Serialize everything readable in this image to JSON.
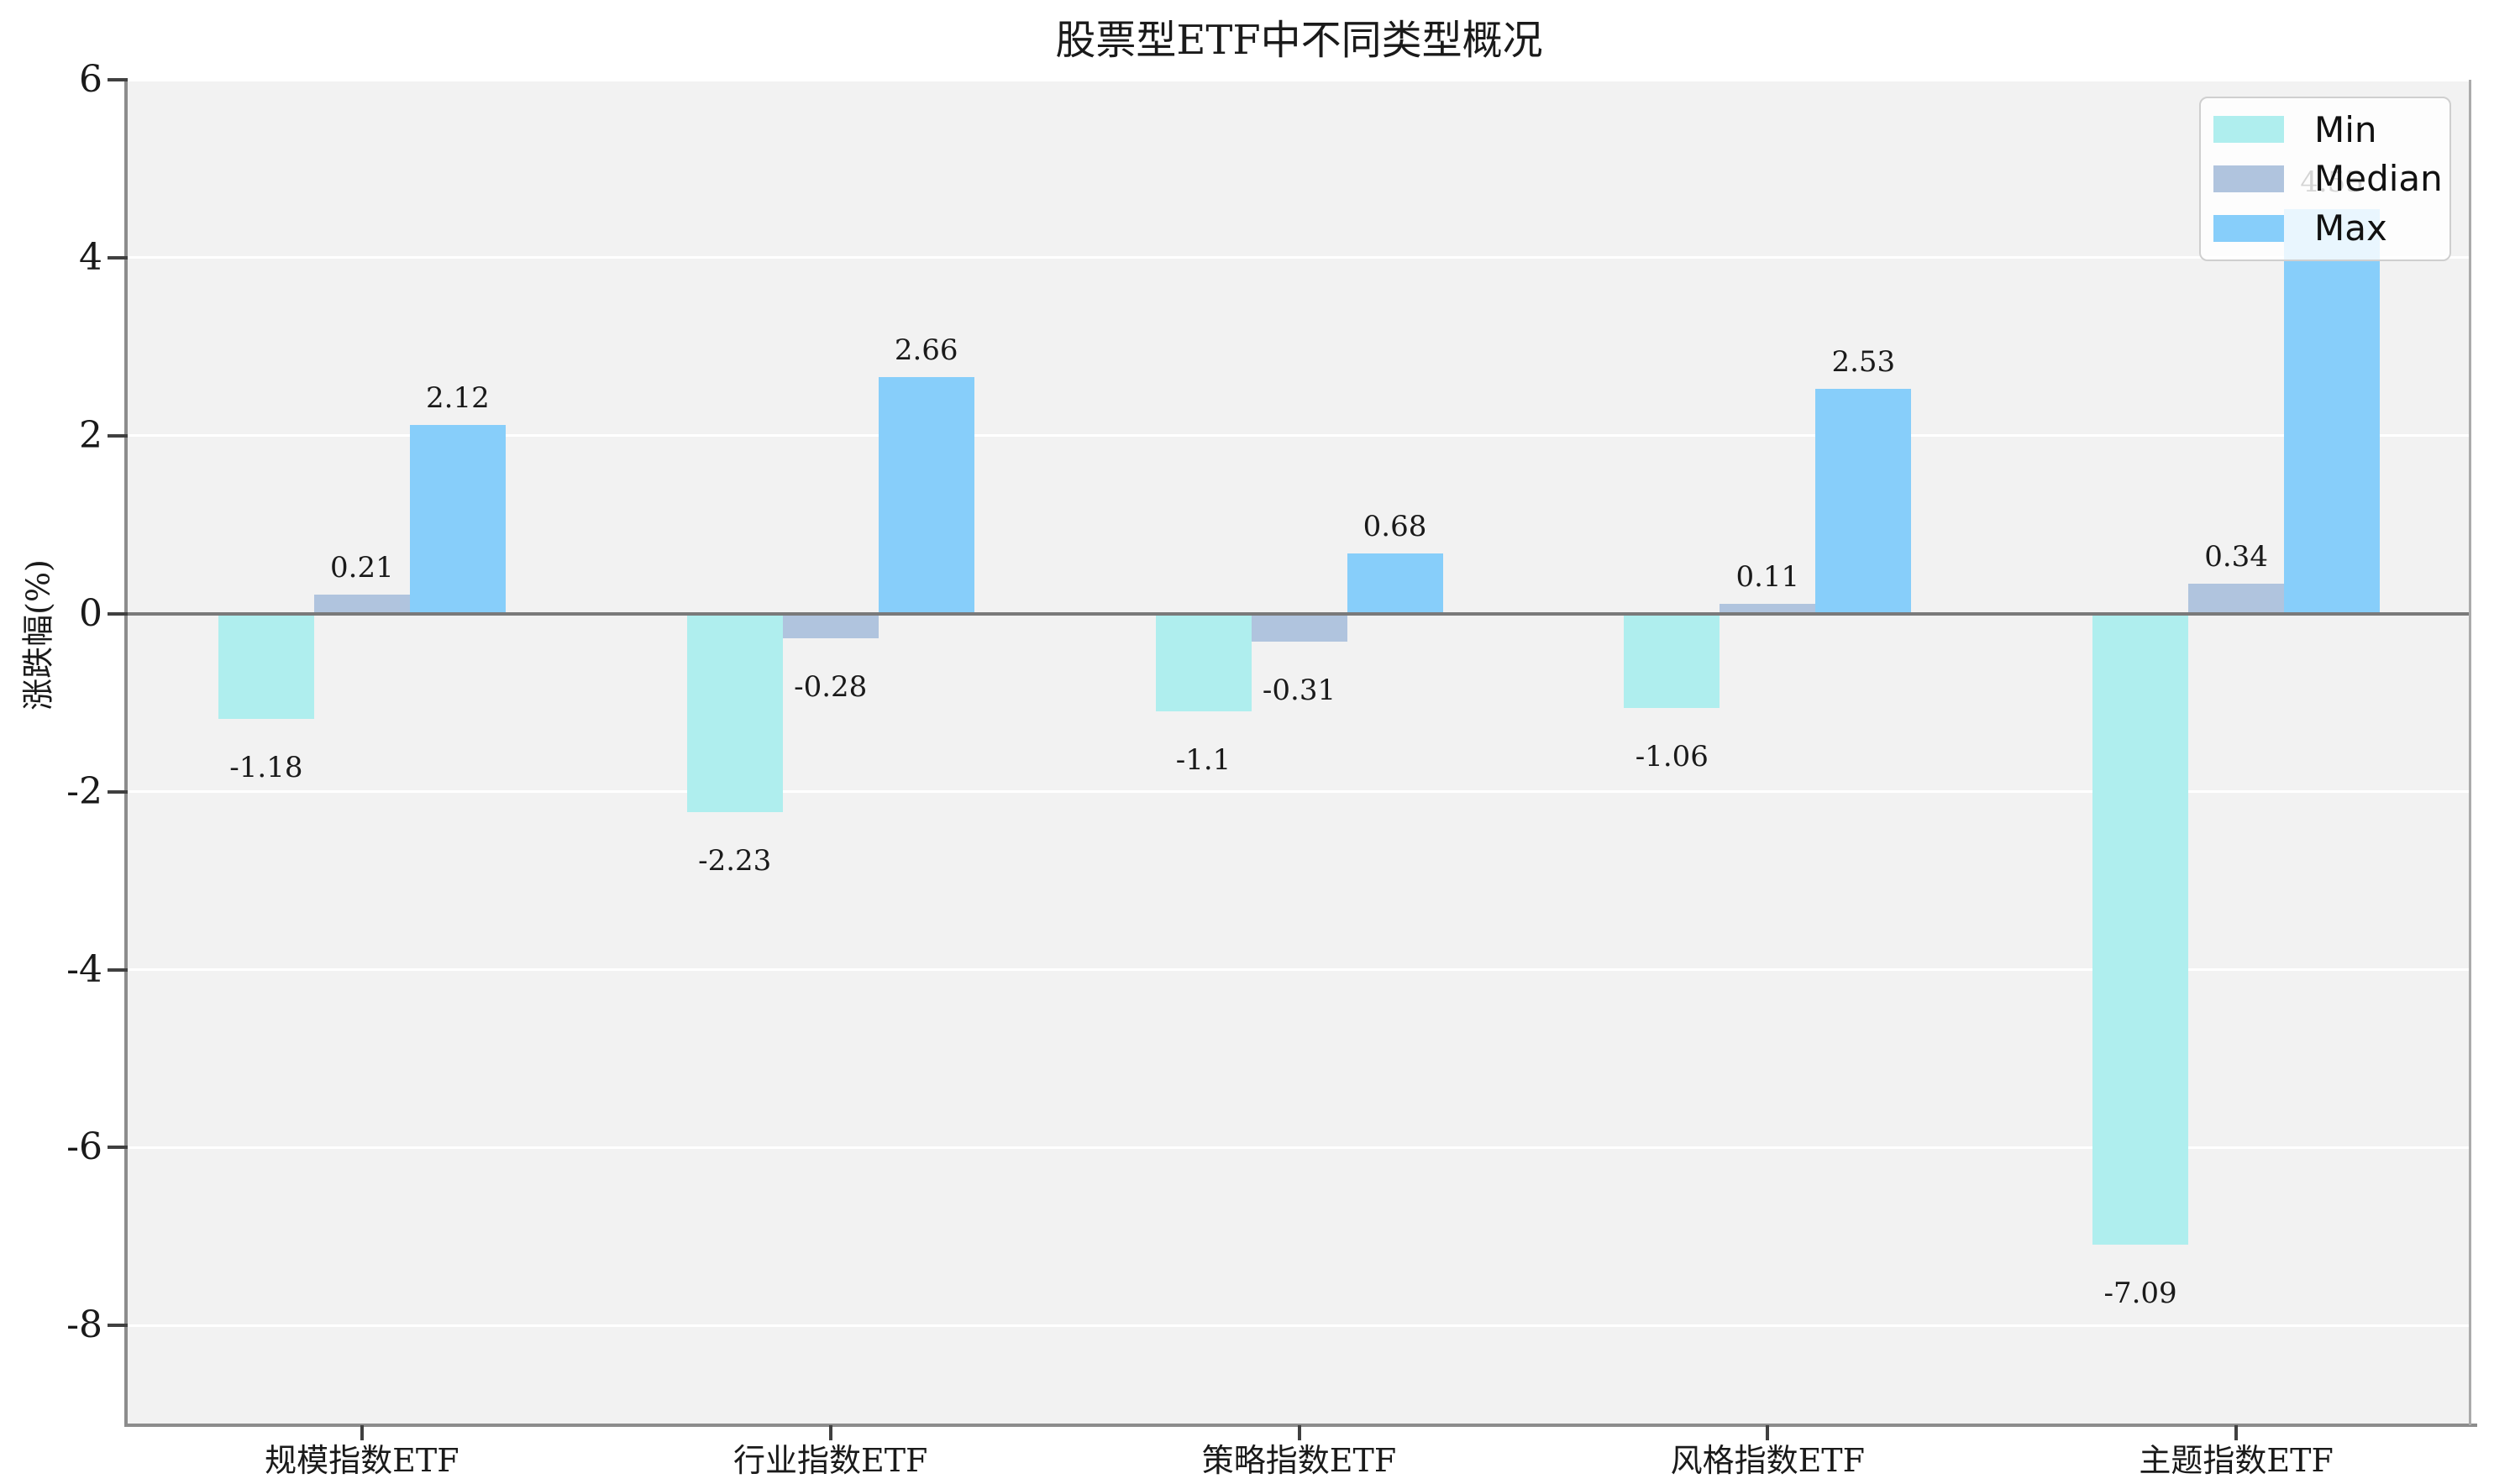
{
  "title": "股票型ETF中不同类型概况",
  "y_axis": {
    "label": "涨跌幅(%)",
    "tick_labels": [
      "6",
      "4",
      "2",
      "0",
      "-2",
      "-4",
      "-6",
      "-8"
    ]
  },
  "legend": {
    "items": [
      {
        "label": "Min",
        "color": "#AFEEEE"
      },
      {
        "label": "Median",
        "color": "#B0C4DE"
      },
      {
        "label": "Max",
        "color": "#87CEFA"
      }
    ]
  },
  "chart_data": {
    "type": "bar",
    "title": "股票型ETF中不同类型概况",
    "xlabel": "",
    "ylabel": "涨跌幅(%)",
    "categories": [
      "规模指数ETF",
      "行业指数ETF",
      "策略指数ETF",
      "风格指数ETF",
      "主题指数ETF"
    ],
    "series": [
      {
        "name": "Min",
        "color": "#AFEEEE",
        "values": [
          -1.18,
          -2.23,
          -1.1,
          -1.06,
          -7.09
        ],
        "labels": [
          "-1.18",
          "-2.23",
          "-1.1",
          "-1.06",
          "-7.09"
        ]
      },
      {
        "name": "Median",
        "color": "#B0C4DE",
        "values": [
          0.21,
          -0.28,
          -0.31,
          0.11,
          0.34
        ],
        "labels": [
          "0.21",
          "-0.28",
          "-0.31",
          "0.11",
          "0.34"
        ]
      },
      {
        "name": "Max",
        "color": "#87CEFA",
        "values": [
          2.12,
          2.66,
          0.68,
          2.53,
          4.55
        ],
        "labels": [
          "2.12",
          "2.66",
          "0.68",
          "2.53",
          "4.55"
        ]
      }
    ],
    "yticks": [
      6,
      4,
      2,
      0,
      -2,
      -4,
      -6,
      -8
    ],
    "ylim": [
      -9.12,
      6
    ],
    "grid": "horizontal",
    "grid_color": "#ffffff",
    "plot_bg": "#f2f2f2",
    "zero_line": true,
    "zero_line_color": "#7a7a7a",
    "legend_position": "upper-right"
  }
}
